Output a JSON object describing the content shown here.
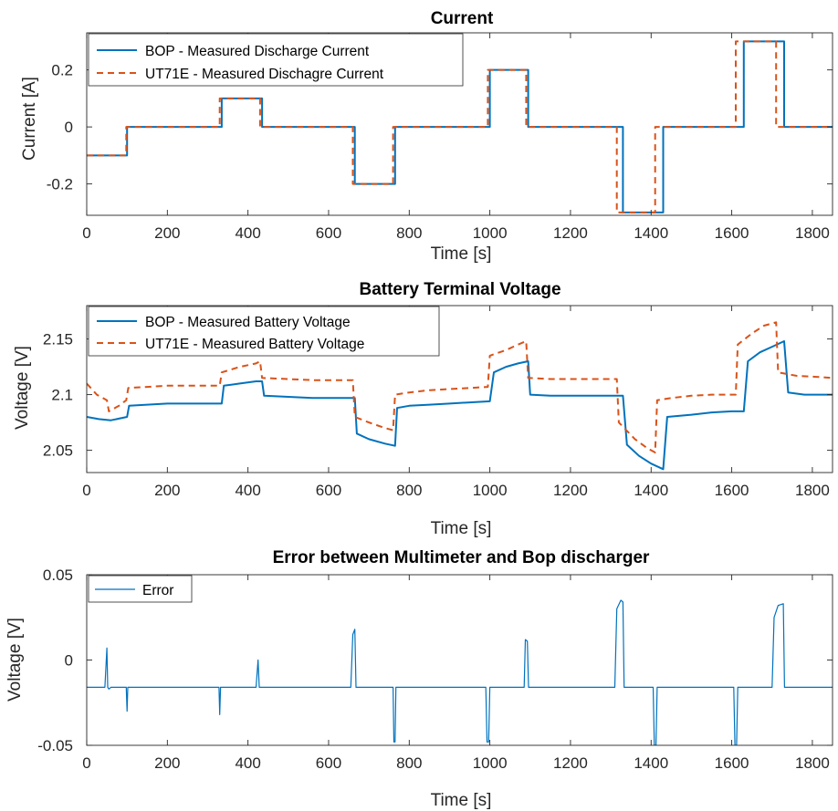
{
  "chart_data": [
    {
      "type": "line",
      "title": "Current",
      "xlabel": "Time [s]",
      "ylabel": "Current [A]",
      "xlim": [
        0,
        1850
      ],
      "ylim": [
        -0.31,
        0.33
      ],
      "xticks": [
        0,
        200,
        400,
        600,
        800,
        1000,
        1200,
        1400,
        1600,
        1800
      ],
      "xtick_labels": [
        "0",
        "200",
        "400",
        "600",
        "800",
        "1000",
        "1200",
        "1400",
        "1600",
        "1800"
      ],
      "yticks": [
        -0.2,
        0,
        0.2
      ],
      "ytick_labels": [
        "-0.2",
        "0",
        "0.2"
      ],
      "legend_position": "top-left",
      "series": [
        {
          "name": "BOP - Measured Discharge Current",
          "color": "#0072BD",
          "style": "solid",
          "x": [
            0,
            100,
            100,
            335,
            335,
            435,
            435,
            665,
            665,
            765,
            765,
            1000,
            1000,
            1095,
            1095,
            1330,
            1330,
            1430,
            1430,
            1630,
            1630,
            1730,
            1730,
            1850
          ],
          "y": [
            -0.1,
            -0.1,
            0,
            0,
            0.1,
            0.1,
            0,
            0,
            -0.2,
            -0.2,
            0,
            0,
            0.2,
            0.2,
            0,
            0,
            -0.3,
            -0.3,
            0,
            0,
            0.3,
            0.3,
            0,
            0
          ]
        },
        {
          "name": "UT71E - Measured Dischagre Current",
          "color": "#D95319",
          "style": "dashed",
          "x": [
            0,
            98,
            98,
            330,
            330,
            430,
            430,
            660,
            660,
            760,
            760,
            995,
            995,
            1090,
            1090,
            1315,
            1315,
            1410,
            1410,
            1610,
            1610,
            1710,
            1710,
            1850
          ],
          "y": [
            -0.1,
            -0.1,
            0,
            0,
            0.1,
            0.1,
            0,
            0,
            -0.2,
            -0.2,
            0,
            0,
            0.2,
            0.2,
            0,
            0,
            -0.3,
            -0.3,
            0,
            0,
            0.3,
            0.3,
            0,
            0
          ]
        }
      ]
    },
    {
      "type": "line",
      "title": "Battery Terminal Voltage",
      "xlabel": "Time [s]",
      "ylabel": "Voltage [V]",
      "xlim": [
        0,
        1850
      ],
      "ylim": [
        2.03,
        2.18
      ],
      "xticks": [
        0,
        200,
        400,
        600,
        800,
        1000,
        1200,
        1400,
        1600,
        1800
      ],
      "xtick_labels": [
        "0",
        "200",
        "400",
        "600",
        "800",
        "1000",
        "1200",
        "1400",
        "1600",
        "1800"
      ],
      "yticks": [
        2.05,
        2.1,
        2.15
      ],
      "ytick_labels": [
        "2.05",
        "2.1",
        "2.15"
      ],
      "legend_position": "top-left",
      "series": [
        {
          "name": "BOP - Measured Battery Voltage",
          "color": "#0072BD",
          "style": "solid",
          "x": [
            0,
            30,
            60,
            100,
            105,
            150,
            200,
            250,
            300,
            335,
            340,
            380,
            420,
            435,
            440,
            500,
            560,
            620,
            665,
            670,
            700,
            740,
            765,
            770,
            800,
            850,
            900,
            950,
            1000,
            1010,
            1040,
            1070,
            1095,
            1100,
            1150,
            1200,
            1250,
            1300,
            1330,
            1340,
            1370,
            1400,
            1430,
            1440,
            1500,
            1550,
            1600,
            1630,
            1640,
            1670,
            1700,
            1730,
            1740,
            1780,
            1820,
            1850
          ],
          "y": [
            2.08,
            2.078,
            2.077,
            2.08,
            2.09,
            2.091,
            2.092,
            2.092,
            2.092,
            2.092,
            2.108,
            2.11,
            2.112,
            2.112,
            2.099,
            2.098,
            2.097,
            2.097,
            2.097,
            2.065,
            2.06,
            2.056,
            2.054,
            2.088,
            2.09,
            2.091,
            2.092,
            2.093,
            2.094,
            2.12,
            2.125,
            2.128,
            2.13,
            2.1,
            2.099,
            2.099,
            2.099,
            2.099,
            2.099,
            2.055,
            2.045,
            2.038,
            2.033,
            2.08,
            2.082,
            2.084,
            2.085,
            2.085,
            2.13,
            2.138,
            2.143,
            2.148,
            2.102,
            2.1,
            2.1,
            2.1
          ]
        },
        {
          "name": "UT71E - Measured Battery Voltage",
          "color": "#D95319",
          "style": "dashed",
          "x": [
            0,
            25,
            50,
            55,
            80,
            98,
            103,
            150,
            200,
            250,
            300,
            330,
            335,
            380,
            420,
            430,
            435,
            500,
            560,
            620,
            660,
            665,
            700,
            740,
            760,
            765,
            800,
            850,
            900,
            950,
            995,
            1000,
            1040,
            1070,
            1090,
            1095,
            1150,
            1200,
            1250,
            1300,
            1315,
            1320,
            1360,
            1390,
            1410,
            1415,
            1450,
            1500,
            1550,
            1610,
            1615,
            1650,
            1680,
            1710,
            1715,
            1760,
            1810,
            1850
          ],
          "y": [
            2.11,
            2.1,
            2.095,
            2.085,
            2.09,
            2.095,
            2.106,
            2.107,
            2.108,
            2.108,
            2.108,
            2.108,
            2.12,
            2.125,
            2.128,
            2.13,
            2.115,
            2.114,
            2.113,
            2.113,
            2.113,
            2.08,
            2.075,
            2.07,
            2.068,
            2.1,
            2.102,
            2.104,
            2.105,
            2.106,
            2.107,
            2.135,
            2.14,
            2.145,
            2.148,
            2.115,
            2.114,
            2.114,
            2.114,
            2.114,
            2.114,
            2.075,
            2.06,
            2.052,
            2.048,
            2.095,
            2.097,
            2.099,
            2.1,
            2.1,
            2.145,
            2.155,
            2.162,
            2.165,
            2.12,
            2.117,
            2.116,
            2.115
          ]
        }
      ]
    },
    {
      "type": "line",
      "title": "Error between Multimeter and Bop discharger",
      "xlabel": "Time [s]",
      "ylabel": "Voltage [V]",
      "xlim": [
        0,
        1850
      ],
      "ylim": [
        -0.05,
        0.05
      ],
      "xticks": [
        0,
        200,
        400,
        600,
        800,
        1000,
        1200,
        1400,
        1600,
        1800
      ],
      "xtick_labels": [
        "0",
        "200",
        "400",
        "600",
        "800",
        "1000",
        "1200",
        "1400",
        "1600",
        "1800"
      ],
      "yticks": [
        -0.05,
        0,
        0.05
      ],
      "ytick_labels": [
        "-0.05",
        "0",
        "0.05"
      ],
      "legend_position": "top-left",
      "series": [
        {
          "name": "Error",
          "color": "#0072BD",
          "style": "solid",
          "x": [
            0,
            45,
            50,
            52,
            55,
            60,
            98,
            100,
            102,
            105,
            200,
            300,
            328,
            330,
            332,
            335,
            420,
            425,
            428,
            432,
            435,
            500,
            600,
            655,
            660,
            665,
            668,
            760,
            762,
            765,
            767,
            770,
            900,
            990,
            993,
            997,
            1000,
            1085,
            1088,
            1093,
            1096,
            1200,
            1310,
            1315,
            1325,
            1330,
            1333,
            1405,
            1408,
            1412,
            1415,
            1500,
            1605,
            1608,
            1612,
            1615,
            1700,
            1705,
            1715,
            1728,
            1731,
            1800,
            1850
          ],
          "y": [
            -0.016,
            -0.016,
            0.007,
            -0.016,
            -0.017,
            -0.016,
            -0.016,
            -0.03,
            -0.016,
            -0.016,
            -0.016,
            -0.016,
            -0.016,
            -0.032,
            -0.016,
            -0.016,
            -0.016,
            0.0,
            -0.016,
            -0.016,
            -0.016,
            -0.016,
            -0.016,
            -0.016,
            0.015,
            0.018,
            -0.016,
            -0.016,
            -0.048,
            -0.048,
            -0.016,
            -0.016,
            -0.016,
            -0.016,
            -0.048,
            -0.048,
            -0.016,
            -0.016,
            0.012,
            0.011,
            -0.016,
            -0.016,
            -0.016,
            0.03,
            0.035,
            0.034,
            -0.016,
            -0.016,
            -0.05,
            -0.05,
            -0.016,
            -0.016,
            -0.016,
            -0.05,
            -0.05,
            -0.016,
            -0.016,
            0.025,
            0.032,
            0.033,
            -0.016,
            -0.016,
            -0.016
          ]
        }
      ]
    }
  ]
}
